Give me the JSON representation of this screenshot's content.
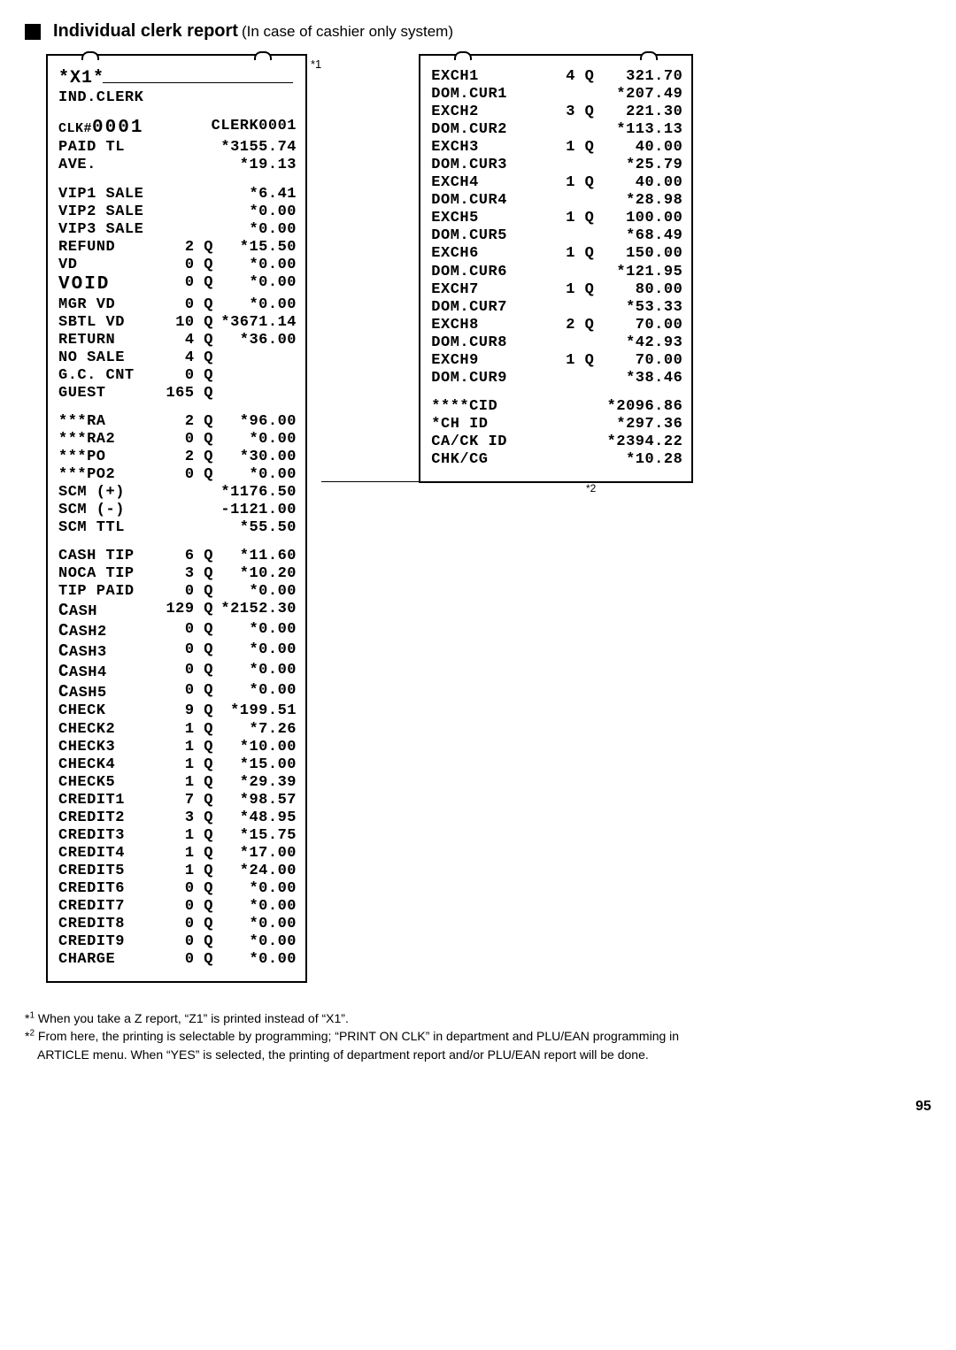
{
  "header": {
    "bold": "Individual clerk report",
    "thin": "(In case of cashier only system)"
  },
  "marker1": "*1",
  "marker2": "*2",
  "left": {
    "x1": "*X1*",
    "sub": "IND.CLERK",
    "clk_l": "CLK#0001",
    "clk_r": "CLERK0001",
    "paid_l": "PAID TL",
    "paid_v": "*3155.74",
    "ave_l": "AVE.",
    "ave_v": "*19.13",
    "block1": [
      [
        "VIP1 SALE",
        "",
        "*6.41"
      ],
      [
        "VIP2 SALE",
        "",
        "*0.00"
      ],
      [
        "VIP3 SALE",
        "",
        "*0.00"
      ],
      [
        "REFUND",
        "2 Q",
        "*15.50"
      ],
      [
        "VD",
        "0 Q",
        "*0.00"
      ],
      [
        "VOID",
        "0 Q",
        "*0.00",
        "big"
      ],
      [
        "MGR VD",
        "0 Q",
        "*0.00"
      ],
      [
        "SBTL VD",
        "10 Q",
        "*3671.14"
      ],
      [
        "RETURN",
        "4 Q",
        "*36.00"
      ],
      [
        "NO SALE",
        "4 Q",
        ""
      ],
      [
        "G.C. CNT",
        "0 Q",
        ""
      ],
      [
        "GUEST",
        "165 Q",
        ""
      ]
    ],
    "block2": [
      [
        "***RA",
        "2 Q",
        "*96.00"
      ],
      [
        "***RA2",
        "0 Q",
        "*0.00"
      ],
      [
        "***PO",
        "2 Q",
        "*30.00"
      ],
      [
        "***PO2",
        "0 Q",
        "*0.00"
      ],
      [
        "SCM (+)",
        "",
        "*1176.50"
      ],
      [
        "SCM (-)",
        "",
        "-1121.00"
      ],
      [
        "SCM TTL",
        "",
        "*55.50"
      ]
    ],
    "block3": [
      [
        "CASH TIP",
        "6 Q",
        "*11.60"
      ],
      [
        "NOCA TIP",
        "3 Q",
        "*10.20"
      ],
      [
        "TIP PAID",
        "0 Q",
        "*0.00"
      ],
      [
        "CASH",
        "129 Q",
        "*2152.30",
        "bigl"
      ],
      [
        "CASH2",
        "0 Q",
        "*0.00",
        "bigl"
      ],
      [
        "CASH3",
        "0 Q",
        "*0.00",
        "bigl"
      ],
      [
        "CASH4",
        "0 Q",
        "*0.00",
        "bigl"
      ],
      [
        "CASH5",
        "0 Q",
        "*0.00",
        "bigl"
      ],
      [
        "CHECK",
        "9 Q",
        "*199.51"
      ],
      [
        "CHECK2",
        "1 Q",
        "*7.26"
      ],
      [
        "CHECK3",
        "1 Q",
        "*10.00"
      ],
      [
        "CHECK4",
        "1 Q",
        "*15.00"
      ],
      [
        "CHECK5",
        "1 Q",
        "*29.39"
      ],
      [
        "CREDIT1",
        "7 Q",
        "*98.57"
      ],
      [
        "CREDIT2",
        "3 Q",
        "*48.95"
      ],
      [
        "CREDIT3",
        "1 Q",
        "*15.75"
      ],
      [
        "CREDIT4",
        "1 Q",
        "*17.00"
      ],
      [
        "CREDIT5",
        "1 Q",
        "*24.00"
      ],
      [
        "CREDIT6",
        "0 Q",
        "*0.00"
      ],
      [
        "CREDIT7",
        "0 Q",
        "*0.00"
      ],
      [
        "CREDIT8",
        "0 Q",
        "*0.00"
      ],
      [
        "CREDIT9",
        "0 Q",
        "*0.00"
      ],
      [
        "CHARGE",
        "0 Q",
        "*0.00"
      ]
    ]
  },
  "right": {
    "rows": [
      [
        "EXCH1",
        "4 Q",
        "321.70"
      ],
      [
        "DOM.CUR1",
        "",
        "*207.49"
      ],
      [
        "EXCH2",
        "3 Q",
        "221.30"
      ],
      [
        "DOM.CUR2",
        "",
        "*113.13"
      ],
      [
        "EXCH3",
        "1 Q",
        "40.00"
      ],
      [
        "DOM.CUR3",
        "",
        "*25.79"
      ],
      [
        "EXCH4",
        "1 Q",
        "40.00"
      ],
      [
        "DOM.CUR4",
        "",
        "*28.98"
      ],
      [
        "EXCH5",
        "1 Q",
        "100.00"
      ],
      [
        "DOM.CUR5",
        "",
        "*68.49"
      ],
      [
        "EXCH6",
        "1 Q",
        "150.00"
      ],
      [
        "DOM.CUR6",
        "",
        "*121.95"
      ],
      [
        "EXCH7",
        "1 Q",
        "80.00"
      ],
      [
        "DOM.CUR7",
        "",
        "*53.33"
      ],
      [
        "EXCH8",
        "2 Q",
        "70.00"
      ],
      [
        "DOM.CUR8",
        "",
        "*42.93"
      ],
      [
        "EXCH9",
        "1 Q",
        "70.00"
      ],
      [
        "DOM.CUR9",
        "",
        "*38.46"
      ]
    ],
    "rows2": [
      [
        "****CID",
        "",
        "*2096.86"
      ],
      [
        "*CH ID",
        "",
        "*297.36"
      ],
      [
        "CA/CK ID",
        "",
        "*2394.22"
      ],
      [
        "CHK/CG",
        "",
        "*10.28"
      ]
    ]
  },
  "foot": {
    "n1a": "*",
    "n1sup": "1",
    "n1t": " When you take a Z report, “Z1” is printed instead of “X1”.",
    "n2a": "*",
    "n2sup": "2",
    "n2t": " From here, the printing is selectable by programming; “PRINT ON CLK” in department and PLU/EAN programming in",
    "n2t2": "ARTICLE menu.  When “YES” is selected, the printing of department report and/or PLU/EAN report will be done."
  },
  "page": "95"
}
